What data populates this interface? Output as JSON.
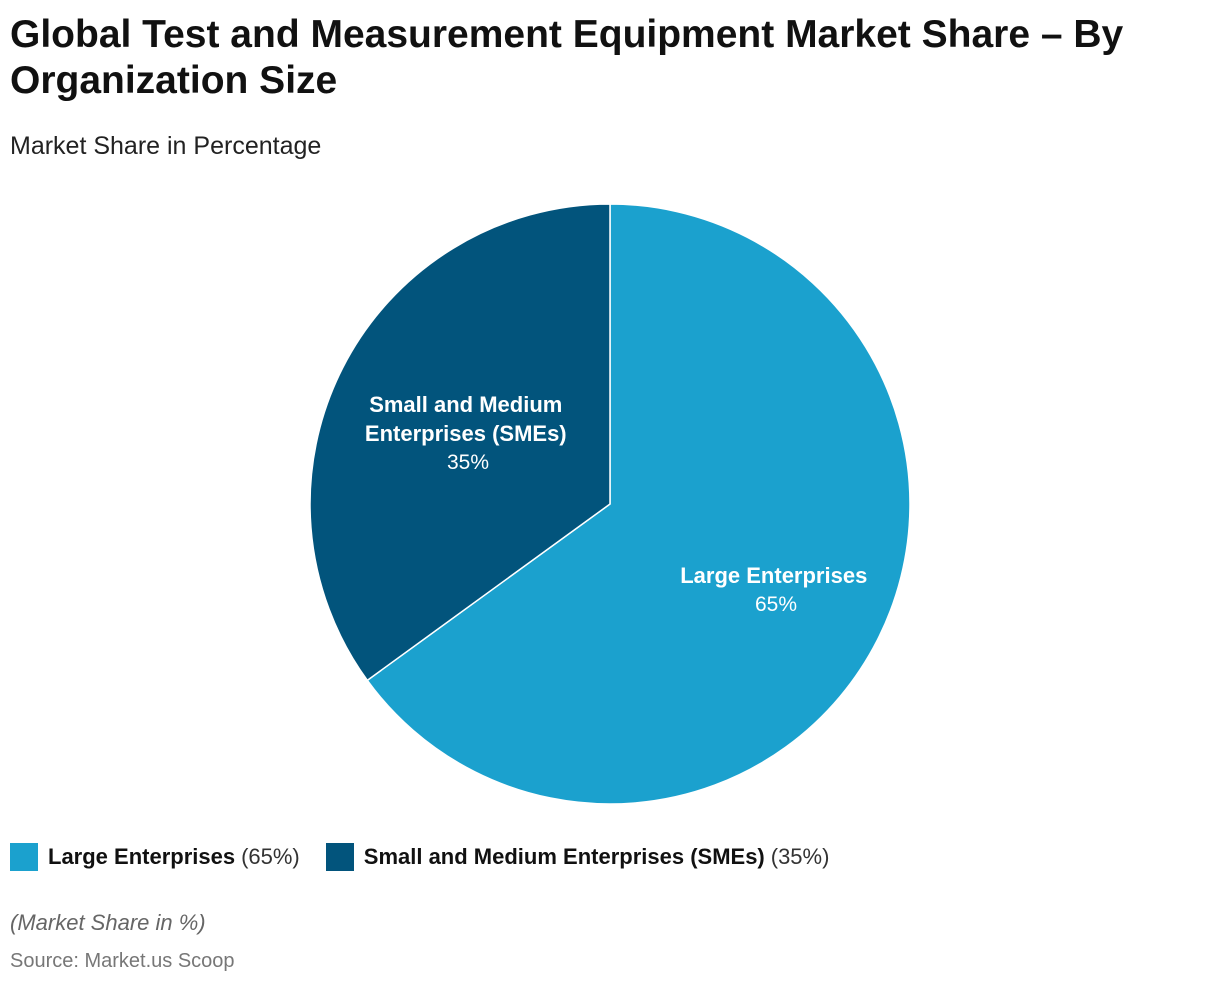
{
  "colors": {
    "large": "#1ba1ce",
    "sme": "#02547c"
  },
  "chart_data": {
    "type": "pie",
    "title": "Global Test and Measurement Equipment Market Share – By Organization Size",
    "subtitle": "Market Share in Percentage",
    "slices": [
      {
        "label": "Large Enterprises",
        "value": 65,
        "value_label": "65%",
        "legend_value": "(65%)",
        "color": "#1ba1ce"
      },
      {
        "label": "Small and Medium Enterprises (SMEs)",
        "label_lines": [
          "Small and Medium",
          "Enterprises (SMEs)"
        ],
        "value": 35,
        "value_label": "35%",
        "legend_value": "(35%)",
        "color": "#02547c"
      }
    ],
    "legend_placement": "bottom-left",
    "note": "(Market Share in %)",
    "source": "Source: Market.us Scoop"
  }
}
